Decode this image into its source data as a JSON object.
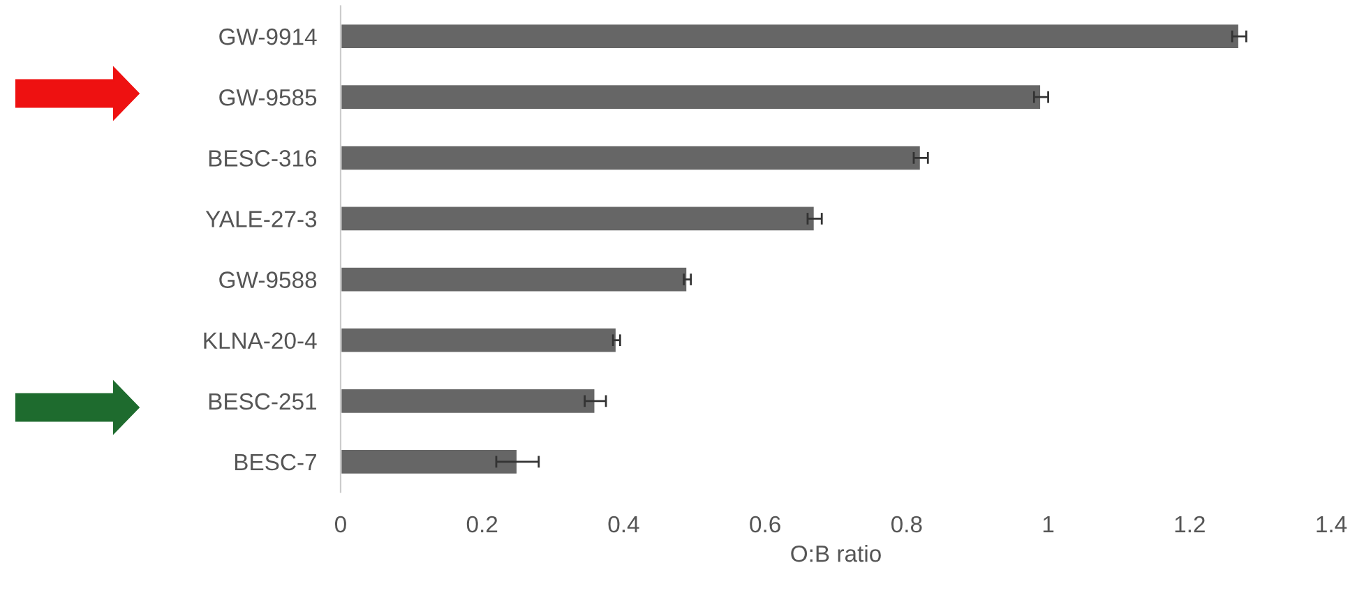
{
  "chart_data": {
    "type": "bar",
    "orientation": "horizontal",
    "xlabel": "O:B ratio",
    "categories": [
      "GW-9914",
      "GW-9585",
      "BESC-316",
      "YALE-27-3",
      "GW-9588",
      "KLNA-20-4",
      "BESC-251",
      "BESC-7"
    ],
    "values": [
      1.27,
      0.99,
      0.82,
      0.67,
      0.49,
      0.39,
      0.36,
      0.25
    ],
    "errors": [
      0.01,
      0.01,
      0.01,
      0.01,
      0.005,
      0.005,
      0.015,
      0.03
    ],
    "color": "#666666",
    "xlim": [
      0,
      1.4
    ],
    "xticks": [
      0,
      0.2,
      0.4,
      0.6,
      0.8,
      1,
      1.2,
      1.4
    ],
    "grid": false,
    "legend": false
  }
}
